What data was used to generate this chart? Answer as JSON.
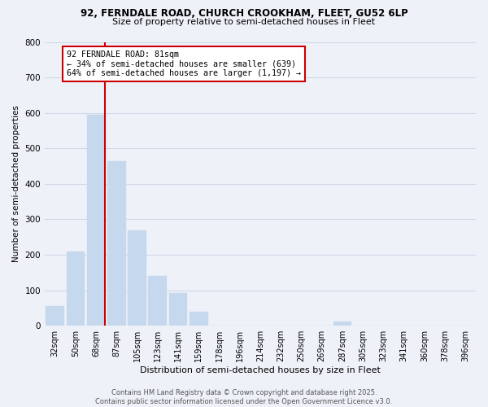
{
  "title_line1": "92, FERNDALE ROAD, CHURCH CROOKHAM, FLEET, GU52 6LP",
  "title_line2": "Size of property relative to semi-detached houses in Fleet",
  "xlabel": "Distribution of semi-detached houses by size in Fleet",
  "ylabel": "Number of semi-detached properties",
  "categories": [
    "32sqm",
    "50sqm",
    "68sqm",
    "87sqm",
    "105sqm",
    "123sqm",
    "141sqm",
    "159sqm",
    "178sqm",
    "196sqm",
    "214sqm",
    "232sqm",
    "250sqm",
    "269sqm",
    "287sqm",
    "305sqm",
    "323sqm",
    "341sqm",
    "360sqm",
    "378sqm",
    "396sqm"
  ],
  "values": [
    55,
    210,
    595,
    465,
    270,
    140,
    93,
    40,
    0,
    0,
    0,
    0,
    0,
    0,
    12,
    0,
    0,
    0,
    0,
    0,
    0
  ],
  "bar_color": "#c5d8ed",
  "bar_edge_color": "#c5d8ed",
  "grid_color": "#d0d8e8",
  "background_color": "#eef2f8",
  "annotation_text": "92 FERNDALE ROAD: 81sqm\n← 34% of semi-detached houses are smaller (639)\n64% of semi-detached houses are larger (1,197) →",
  "annotation_box_color": "#ffffff",
  "annotation_box_edge": "#cc0000",
  "red_line_color": "#cc0000",
  "footer_line1": "Contains HM Land Registry data © Crown copyright and database right 2025.",
  "footer_line2": "Contains public sector information licensed under the Open Government Licence v3.0.",
  "ylim": [
    0,
    800
  ],
  "yticks": [
    0,
    100,
    200,
    300,
    400,
    500,
    600,
    700,
    800
  ]
}
